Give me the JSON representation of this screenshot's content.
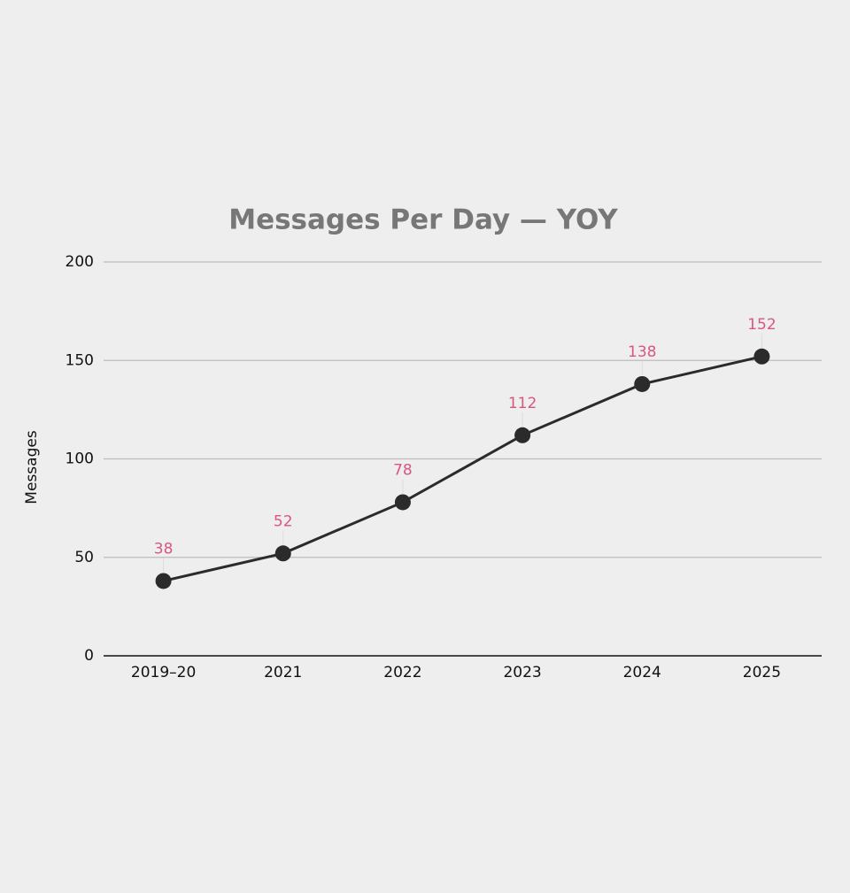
{
  "chart_data": {
    "type": "line",
    "title": "Messages Per Day — YOY",
    "y_label": "Messages",
    "categories": [
      "2019–20",
      "2021",
      "2022",
      "2023",
      "2024",
      "2025"
    ],
    "values": [
      38,
      52,
      78,
      112,
      138,
      152
    ],
    "color": "#2b2b2b",
    "label_color": "#d9577f",
    "ylim": [
      0,
      200
    ],
    "yticks": [
      0,
      50,
      100,
      150,
      200
    ],
    "grid": true,
    "data_labels": true
  }
}
